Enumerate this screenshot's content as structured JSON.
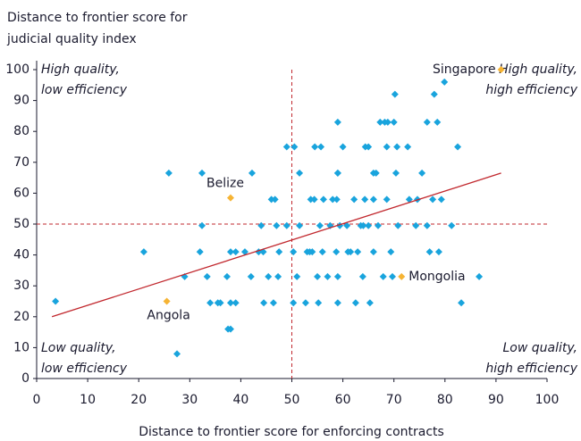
{
  "chart_data": {
    "type": "scatter",
    "y_label": [
      "Distance to frontier score for",
      "judicial quality index"
    ],
    "x_label": "Distance to frontier score for enforcing contracts",
    "xlim": [
      0,
      100
    ],
    "ylim": [
      0,
      100
    ],
    "xticks": [
      0,
      10,
      20,
      30,
      40,
      50,
      60,
      70,
      80,
      90,
      100
    ],
    "yticks": [
      0,
      10,
      20,
      30,
      40,
      50,
      60,
      70,
      80,
      90,
      100
    ],
    "reference_x": 50,
    "reference_y": 50,
    "color": "#19a4dd",
    "highlight_color": "#f6b434",
    "trend_color": "#c1272d",
    "x": [
      3.7,
      21,
      25.9,
      32.4,
      27.5,
      29,
      32,
      32.4,
      33.4,
      34,
      35.5,
      36,
      37.3,
      38,
      39,
      37.5,
      38,
      38,
      39,
      40.8,
      42,
      42.2,
      43.5,
      44.4,
      44,
      44.5,
      45.4,
      46,
      46.7,
      46.4,
      47,
      47.3,
      47.5,
      49,
      49,
      50.3,
      50.3,
      50.5,
      51,
      51.5,
      51.5,
      53,
      53.5,
      54,
      52.7,
      53.7,
      54.4,
      54.5,
      55,
      55.2,
      55.5,
      55.7,
      56,
      56.2,
      57,
      57.5,
      58,
      58.8,
      59,
      59,
      59,
      58.7,
      59,
      59,
      59.4,
      60,
      61,
      61.5,
      60.8,
      62.2,
      62.5,
      62.9,
      63.5,
      64,
      64.4,
      65,
      63.9,
      64.3,
      65,
      65.3,
      66,
      66.5,
      66,
      66,
      67.3,
      68.2,
      66.9,
      67.9,
      68.6,
      68.6,
      68.8,
      69.4,
      69.7,
      70.2,
      70,
      70.4,
      70.6,
      70.8,
      72.7,
      73,
      74.3,
      74.6,
      75.5,
      76.5,
      76.5,
      77,
      77.6,
      77.9,
      78.5,
      78.8,
      79.3,
      79.9,
      81.3,
      82.5,
      83.2,
      86.7
    ],
    "y": [
      25,
      41,
      66.5,
      66.5,
      8,
      33,
      41,
      49.5,
      33,
      24.5,
      24.5,
      24.5,
      33,
      24.5,
      24.5,
      16,
      16,
      41,
      41,
      41,
      33,
      66.5,
      41,
      41,
      49.5,
      24.5,
      33,
      58,
      58,
      24.5,
      49.5,
      33,
      41,
      75,
      49.5,
      41,
      24.5,
      75,
      33,
      49.5,
      66.5,
      41,
      41,
      41,
      24.5,
      58,
      58,
      75,
      33,
      24.5,
      49.5,
      75,
      41,
      58,
      33,
      49.5,
      58,
      58,
      66.5,
      66.5,
      83,
      41,
      33,
      24.5,
      49.5,
      75,
      41,
      41,
      49.5,
      58,
      24.5,
      41,
      49.5,
      49.5,
      75,
      75,
      33,
      58,
      49.5,
      24.5,
      66.5,
      66.5,
      41,
      58,
      83,
      83,
      49.5,
      33,
      58,
      75,
      83,
      41,
      33,
      92,
      83,
      66.5,
      75,
      49.5,
      75,
      58,
      49.5,
      58,
      66.5,
      49.5,
      83,
      41,
      58,
      92,
      83,
      41,
      58,
      96,
      49.5,
      75,
      24.5,
      33
    ],
    "highlights": [
      {
        "label": "Singapore",
        "x": 91,
        "y": 100
      },
      {
        "label": "Belize",
        "x": 38,
        "y": 58.5
      },
      {
        "label": "Mongolia",
        "x": 71.5,
        "y": 33
      },
      {
        "label": "Angola",
        "x": 25.5,
        "y": 25
      }
    ],
    "trendline": {
      "x": [
        3,
        91
      ],
      "y": [
        20,
        66.5
      ]
    },
    "quadrant_labels": {
      "top_left": [
        "High quality,",
        "low efficiency"
      ],
      "top_right": [
        "High quality,",
        "high efficiency"
      ],
      "bottom_left": [
        "Low quality,",
        "low efficiency"
      ],
      "bottom_right": [
        "Low quality,",
        "high efficiency"
      ]
    }
  }
}
